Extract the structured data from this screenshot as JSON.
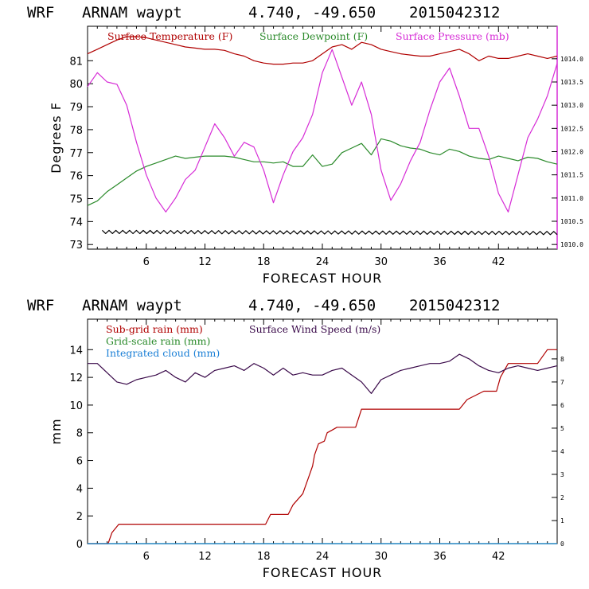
{
  "chart_data": [
    {
      "type": "line",
      "header": {
        "model": "WRF",
        "station": "ARNAM waypt",
        "coords": "4.740, -49.650",
        "datetime": "2015042312"
      },
      "xlabel": "FORECAST HOUR",
      "ylabel": "Degrees F",
      "xlim": [
        0,
        48
      ],
      "xticks": [
        "6",
        "12",
        "18",
        "24",
        "30",
        "36",
        "42"
      ],
      "ylim": [
        72.8,
        82.5
      ],
      "yticks": [
        "73",
        "74",
        "75",
        "76",
        "77",
        "78",
        "79",
        "80",
        "81"
      ],
      "y2lim": [
        1009.9,
        1014.7
      ],
      "y2ticks": [
        "1010.0",
        "1010.5",
        "1011.0",
        "1011.5",
        "1012.0",
        "1012.5",
        "1013.0",
        "1013.5",
        "1014.0"
      ],
      "series": [
        {
          "name": "Surface Temperature (F)",
          "color": "#b00000",
          "axis": "left",
          "x": [
            0,
            1,
            2,
            3,
            4,
            5,
            6,
            7,
            8,
            9,
            10,
            11,
            12,
            13,
            14,
            15,
            16,
            17,
            18,
            19,
            20,
            21,
            22,
            23,
            24,
            25,
            26,
            27,
            28,
            29,
            30,
            31,
            32,
            33,
            34,
            35,
            36,
            37,
            38,
            39,
            40,
            41,
            42,
            43,
            44,
            45,
            46,
            47,
            48
          ],
          "values": [
            81.3,
            81.5,
            81.7,
            81.9,
            82.05,
            82.05,
            82.0,
            81.9,
            81.8,
            81.7,
            81.6,
            81.55,
            81.5,
            81.5,
            81.45,
            81.3,
            81.2,
            81.0,
            80.9,
            80.85,
            80.85,
            80.9,
            80.9,
            81.0,
            81.3,
            81.6,
            81.7,
            81.5,
            81.8,
            81.7,
            81.5,
            81.4,
            81.3,
            81.25,
            81.2,
            81.2,
            81.3,
            81.4,
            81.5,
            81.3,
            81.0,
            81.2,
            81.1,
            81.1,
            81.2,
            81.3,
            81.2,
            81.1,
            81.2
          ]
        },
        {
          "name": "Surface Dewpoint (F)",
          "color": "#2a8a2a",
          "axis": "left",
          "x": [
            0,
            1,
            2,
            3,
            4,
            5,
            6,
            7,
            8,
            9,
            10,
            11,
            12,
            13,
            14,
            15,
            16,
            17,
            18,
            19,
            20,
            21,
            22,
            23,
            24,
            25,
            26,
            27,
            28,
            29,
            30,
            31,
            32,
            33,
            34,
            35,
            36,
            37,
            38,
            39,
            40,
            41,
            42,
            43,
            44,
            45,
            46,
            47,
            48
          ],
          "values": [
            74.7,
            74.9,
            75.3,
            75.6,
            75.9,
            76.2,
            76.4,
            76.55,
            76.7,
            76.85,
            76.75,
            76.8,
            76.85,
            76.85,
            76.85,
            76.8,
            76.7,
            76.6,
            76.6,
            76.55,
            76.6,
            76.4,
            76.4,
            76.9,
            76.4,
            76.5,
            77.0,
            77.2,
            77.4,
            76.9,
            77.6,
            77.5,
            77.3,
            77.2,
            77.15,
            77.0,
            76.9,
            77.15,
            77.05,
            76.85,
            76.75,
            76.7,
            76.85,
            76.75,
            76.65,
            76.8,
            76.75,
            76.6,
            76.5
          ]
        },
        {
          "name": "Surface Pressure (mb)",
          "color": "#d62bd6",
          "axis": "right",
          "x": [
            0,
            1,
            2,
            3,
            4,
            5,
            6,
            7,
            8,
            9,
            10,
            11,
            12,
            13,
            14,
            15,
            16,
            17,
            18,
            19,
            20,
            21,
            22,
            23,
            24,
            25,
            26,
            27,
            28,
            29,
            30,
            31,
            32,
            33,
            34,
            35,
            36,
            37,
            38,
            39,
            40,
            41,
            42,
            43,
            44,
            45,
            46,
            47,
            48
          ],
          "values": [
            1013.4,
            1013.7,
            1013.5,
            1013.45,
            1013.0,
            1012.2,
            1011.5,
            1011.0,
            1010.7,
            1011.0,
            1011.4,
            1011.6,
            1012.1,
            1012.6,
            1012.3,
            1011.9,
            1012.2,
            1012.1,
            1011.6,
            1010.9,
            1011.5,
            1012.0,
            1012.3,
            1012.8,
            1013.7,
            1014.2,
            1013.6,
            1013.0,
            1013.5,
            1012.8,
            1011.6,
            1010.95,
            1011.3,
            1011.8,
            1012.2,
            1012.9,
            1013.5,
            1013.8,
            1013.2,
            1012.5,
            1012.5,
            1011.9,
            1011.1,
            1010.7,
            1011.5,
            1012.3,
            1012.7,
            1013.2,
            1013.9
          ]
        },
        {
          "name": "",
          "color": "#000000",
          "axis": "left",
          "style": "zigzag",
          "x": [
            1.5,
            48
          ],
          "values": [
            73.55,
            73.5
          ]
        }
      ],
      "legend": "top"
    },
    {
      "type": "line",
      "header": {
        "model": "WRF",
        "station": "ARNAM waypt",
        "coords": "4.740, -49.650",
        "datetime": "2015042312"
      },
      "xlabel": "FORECAST HOUR",
      "ylabel": "mm",
      "xlim": [
        0,
        48
      ],
      "xticks": [
        "6",
        "12",
        "18",
        "24",
        "30",
        "36",
        "42"
      ],
      "ylim": [
        0,
        16.2
      ],
      "yticks": [
        "0",
        "2",
        "4",
        "6",
        "8",
        "10",
        "12",
        "14"
      ],
      "y2lim": [
        0,
        9.72
      ],
      "y2ticks": [
        "0",
        "1",
        "2",
        "3",
        "4",
        "5",
        "6",
        "7",
        "8"
      ],
      "series": [
        {
          "name": "Sub-grid rain (mm)",
          "color": "#b00000",
          "axis": "left",
          "x": [
            0,
            1.5,
            2.1,
            2.5,
            3.2,
            18.2,
            18.7,
            20.5,
            21,
            22,
            22.6,
            23,
            23.2,
            23.6,
            24.2,
            24.5,
            25,
            25.5,
            26,
            27.4,
            28,
            38,
            38.8,
            40.5,
            41.8,
            42.2,
            43,
            46,
            47,
            48
          ],
          "values": [
            0,
            0,
            0,
            0.8,
            1.4,
            1.4,
            2.1,
            2.1,
            2.8,
            3.6,
            4.8,
            5.6,
            6.4,
            7.2,
            7.4,
            8.0,
            8.2,
            8.4,
            8.4,
            8.4,
            9.7,
            9.7,
            10.4,
            11.0,
            11.0,
            12.0,
            13.0,
            13.0,
            14.0,
            14.0
          ]
        },
        {
          "name": "Grid-scale rain (mm)",
          "color": "#2a8a2a",
          "axis": "left",
          "x": [
            0,
            48
          ],
          "values": [
            0,
            0
          ]
        },
        {
          "name": "Integrated cloud (mm)",
          "color": "#1a7fd6",
          "axis": "left",
          "x": [
            0,
            48
          ],
          "values": [
            0,
            0
          ]
        },
        {
          "name": "Surface Wind Speed (m/s)",
          "color": "#3a0a4a",
          "axis": "right",
          "x": [
            0,
            1,
            2,
            3,
            4,
            5,
            6,
            7,
            8,
            9,
            10,
            11,
            12,
            13,
            14,
            15,
            16,
            17,
            18,
            19,
            20,
            21,
            22,
            23,
            24,
            25,
            26,
            27,
            28,
            29,
            30,
            31,
            32,
            33,
            34,
            35,
            36,
            37,
            38,
            39,
            40,
            41,
            42,
            43,
            44,
            45,
            46,
            47,
            48
          ],
          "values": [
            7.8,
            7.8,
            7.4,
            7.0,
            6.9,
            7.1,
            7.2,
            7.3,
            7.5,
            7.2,
            7.0,
            7.4,
            7.2,
            7.5,
            7.6,
            7.7,
            7.5,
            7.8,
            7.6,
            7.3,
            7.6,
            7.3,
            7.4,
            7.3,
            7.3,
            7.5,
            7.6,
            7.3,
            7.0,
            6.5,
            7.1,
            7.3,
            7.5,
            7.6,
            7.7,
            7.8,
            7.8,
            7.9,
            8.2,
            8.0,
            7.7,
            7.5,
            7.4,
            7.6,
            7.7,
            7.6,
            7.5,
            7.6,
            7.7
          ]
        }
      ],
      "legend": "top-left"
    }
  ]
}
